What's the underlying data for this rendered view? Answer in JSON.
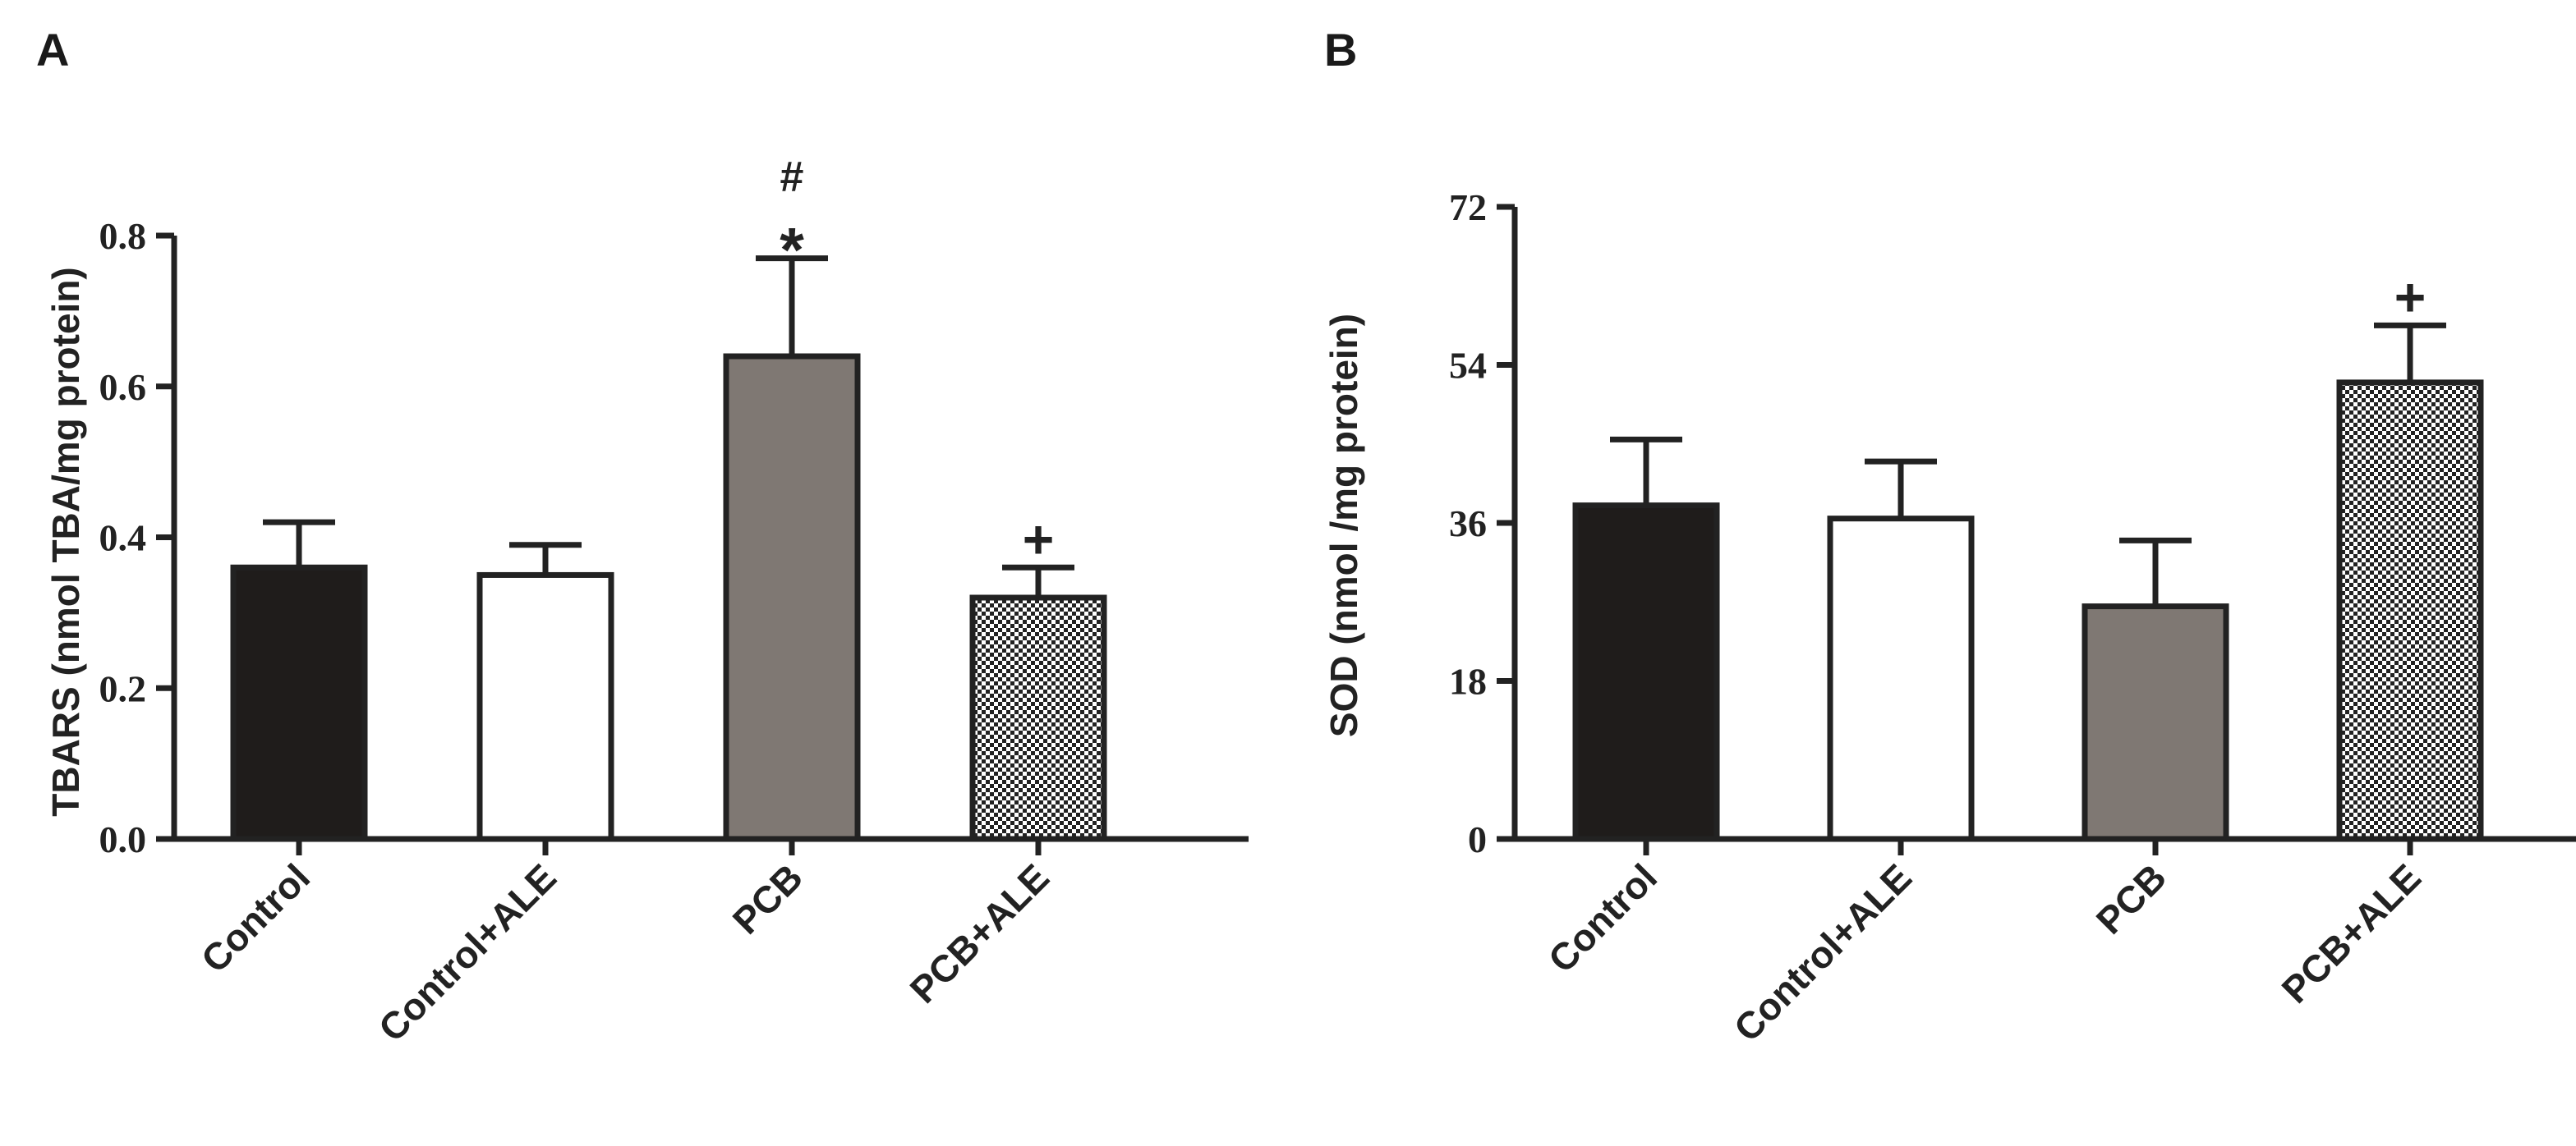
{
  "chart_data": [
    {
      "panel": "A",
      "type": "bar",
      "title": "",
      "xlabel": "",
      "ylabel": "TBARS (nmol TBA/mg protein)",
      "categories": [
        "Control",
        "Control+ALE",
        "PCB",
        "PCB+ALE"
      ],
      "values": [
        0.36,
        0.35,
        0.64,
        0.32
      ],
      "errors": [
        0.06,
        0.04,
        0.13,
        0.04
      ],
      "fills": [
        "black",
        "white",
        "gray",
        "checker"
      ],
      "annotations": [
        {
          "category": "PCB",
          "marks": [
            "*",
            "#"
          ]
        },
        {
          "category": "PCB+ALE",
          "marks": [
            "+"
          ]
        }
      ],
      "ylim": [
        0,
        0.8
      ],
      "yticks": [
        0.0,
        0.2,
        0.4,
        0.6,
        0.8
      ],
      "ytick_labels": [
        "0.0",
        "0.2",
        "0.4",
        "0.6",
        "0.8"
      ],
      "grid": false
    },
    {
      "panel": "B",
      "type": "bar",
      "title": "",
      "xlabel": "",
      "ylabel": "SOD (nmol /mg protein)",
      "categories": [
        "Control",
        "Control+ALE",
        "PCB",
        "PCB+ALE"
      ],
      "values": [
        38,
        36.5,
        26.5,
        52
      ],
      "errors": [
        7.5,
        6.5,
        7.5,
        6.5
      ],
      "fills": [
        "black",
        "white",
        "gray",
        "checker"
      ],
      "annotations": [
        {
          "category": "PCB+ALE",
          "marks": [
            "+"
          ]
        }
      ],
      "ylim": [
        0,
        72
      ],
      "yticks": [
        0,
        18,
        36,
        54,
        72
      ],
      "ytick_labels": [
        "0",
        "18",
        "36",
        "54",
        "72"
      ],
      "grid": false
    }
  ],
  "colors": {
    "black": "#1f1c1b",
    "white": "#ffffff",
    "gray": "#7f7873",
    "checker_dark": "#222222",
    "checker_light": "#ffffff",
    "axis": "#222222"
  }
}
